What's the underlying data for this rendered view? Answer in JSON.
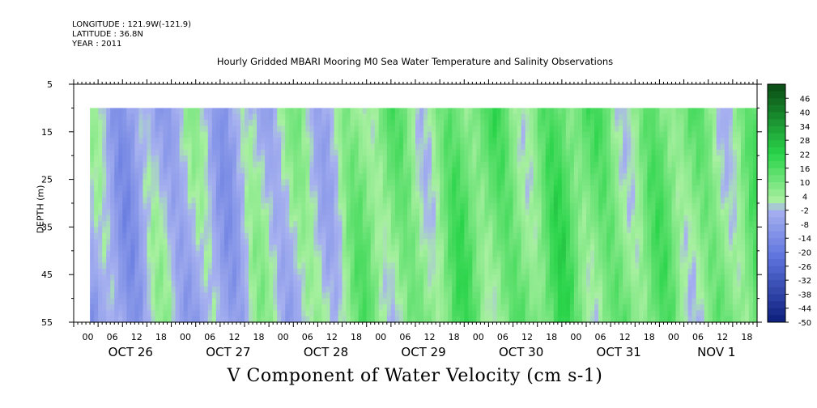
{
  "header": {
    "longitude": "LONGITUDE : 121.9W(-121.9)",
    "latitude": "LATITUDE : 36.8N",
    "year": "YEAR : 2011"
  },
  "chart_data": {
    "type": "heatmap",
    "title": "Hourly Gridded MBARI Mooring M0 Sea Water Temperature and Salinity Observations",
    "xlabel": "",
    "ylabel": "DEPTH (m)",
    "colorbar_label": "V Component of Water Velocity (cm s-1)",
    "yrange": [
      5,
      55
    ],
    "y_reversed": true,
    "yticks": [
      5,
      15,
      25,
      35,
      45,
      55
    ],
    "x_range_hours": [
      0,
      168
    ],
    "x_hour_ticks": [
      "00",
      "06",
      "12",
      "18"
    ],
    "date_labels": [
      "OCT 26",
      "OCT 27",
      "OCT 28",
      "OCT 29",
      "OCT 30",
      "OCT 31",
      "NOV  1"
    ],
    "data_start": "OCT 26 04:00",
    "data_end": "NOV 1 23:00",
    "data_depth_range": [
      10,
      55
    ],
    "colorbar_ticks": [
      "46",
      "40",
      "34",
      "28",
      "22",
      "16",
      "10",
      "4",
      "-2",
      "-8",
      "-14",
      "-20",
      "-26",
      "-32",
      "-38",
      "-44",
      "-50"
    ],
    "colorbar_range": [
      -50,
      52
    ],
    "colorbar_step": 3,
    "colors": {
      "strong_negative": "#0c1e7c",
      "negative": "#5e74de",
      "near_zero_negative": "#a8b2f0",
      "near_zero_positive": "#a8f0a0",
      "positive": "#2ad44a",
      "strong_positive": "#0a4a14"
    },
    "day_mean_velocity": [
      {
        "date": "OCT 26",
        "mean": -6
      },
      {
        "date": "OCT 27",
        "mean": -4
      },
      {
        "date": "OCT 28",
        "mean": -2
      },
      {
        "date": "OCT 29",
        "mean": 6
      },
      {
        "date": "OCT 30",
        "mean": 10
      },
      {
        "date": "OCT 31",
        "mean": 12
      },
      {
        "date": "NOV 1",
        "mean": 8
      }
    ]
  }
}
